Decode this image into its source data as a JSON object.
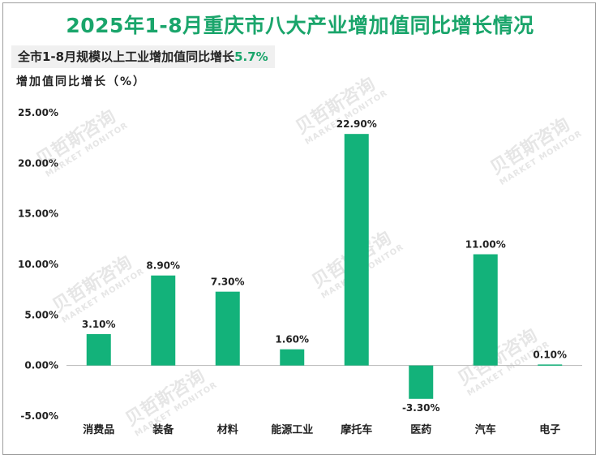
{
  "title": "2025年1-8月重庆市八大产业增加值同比增长情况",
  "subtitle": {
    "prefix": "全市1-8月规模以上工业增加值同比增长",
    "value": "5.7%"
  },
  "watermark": {
    "cn": "贝哲斯咨询",
    "en": "MARKET MONITOR"
  },
  "colors": {
    "bar": "#13b27a",
    "title": "#1aa56b",
    "axis": "#b5b5b5"
  },
  "chart_data": {
    "type": "bar",
    "ylabel": "增加值同比增长（%）",
    "categories": [
      "消费品",
      "装备",
      "材料",
      "能源工业",
      "摩托车",
      "医药",
      "汽车",
      "电子"
    ],
    "values": [
      3.1,
      8.9,
      7.3,
      1.6,
      22.9,
      -3.3,
      11.0,
      0.1
    ],
    "data_labels": [
      "3.10%",
      "8.90%",
      "7.30%",
      "1.60%",
      "22.90%",
      "-3.30%",
      "11.00%",
      "0.10%"
    ],
    "ylim": [
      -5,
      25
    ],
    "yticks": [
      25,
      20,
      15,
      10,
      5,
      0,
      -5
    ],
    "ytick_labels": [
      "25.00%",
      "20.00%",
      "15.00%",
      "10.00%",
      "5.00%",
      "0.00%",
      "-5.00%"
    ],
    "grid": false,
    "legend": "none"
  }
}
